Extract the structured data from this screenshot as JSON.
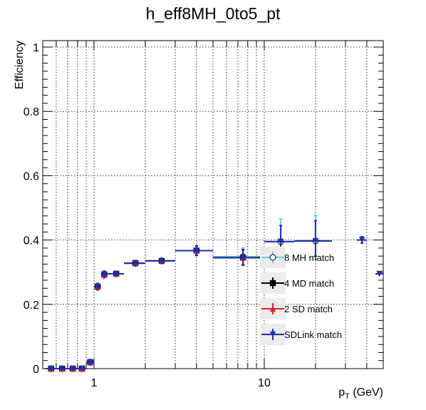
{
  "chart_data": {
    "type": "scatter",
    "title": "h_eff8MH_0to5_pt",
    "xlabel_main": "p",
    "xlabel_sub": "T",
    "xlabel_unit": " (GeV)",
    "ylabel": "Efficiency",
    "x_scale": "log",
    "xlim": [
      0.5,
      50
    ],
    "ylim": [
      0,
      1.02
    ],
    "x_tick_labels": [
      {
        "v": 1,
        "label": "1"
      },
      {
        "v": 10,
        "label": "10"
      }
    ],
    "y_tick_labels": [
      {
        "v": 0,
        "label": "0"
      },
      {
        "v": 0.2,
        "label": "0.2"
      },
      {
        "v": 0.4,
        "label": "0.4"
      },
      {
        "v": 0.6,
        "label": "0.6"
      },
      {
        "v": 0.8,
        "label": "0.8"
      },
      {
        "v": 1,
        "label": "1"
      }
    ],
    "grid": true,
    "legend_position": "bottom-right",
    "series": [
      {
        "name": "8 MH match",
        "color": "#55d4e6",
        "marker": "open-circle",
        "points": [
          {
            "x": 0.56,
            "xlo": 0.52,
            "xhi": 0.6,
            "y": 0.0,
            "ylo": 0.0,
            "yhi": 0.0
          },
          {
            "x": 0.65,
            "xlo": 0.6,
            "xhi": 0.7,
            "y": 0.0,
            "ylo": 0.0,
            "yhi": 0.0
          },
          {
            "x": 0.75,
            "xlo": 0.7,
            "xhi": 0.8,
            "y": 0.0,
            "ylo": 0.0,
            "yhi": 0.0
          },
          {
            "x": 0.85,
            "xlo": 0.8,
            "xhi": 0.9,
            "y": 0.0,
            "ylo": 0.0,
            "yhi": 0.0
          },
          {
            "x": 0.95,
            "xlo": 0.9,
            "xhi": 1.0,
            "y": 0.02,
            "ylo": 0.012,
            "yhi": 0.028
          },
          {
            "x": 1.05,
            "xlo": 1.0,
            "xhi": 1.1,
            "y": 0.255,
            "ylo": 0.245,
            "yhi": 0.265
          },
          {
            "x": 1.15,
            "xlo": 1.1,
            "xhi": 1.2,
            "y": 0.293,
            "ylo": 0.283,
            "yhi": 0.303
          },
          {
            "x": 1.35,
            "xlo": 1.2,
            "xhi": 1.5,
            "y": 0.295,
            "ylo": 0.288,
            "yhi": 0.302
          },
          {
            "x": 1.75,
            "xlo": 1.5,
            "xhi": 2.0,
            "y": 0.328,
            "ylo": 0.32,
            "yhi": 0.336
          },
          {
            "x": 2.5,
            "xlo": 2.0,
            "xhi": 3.0,
            "y": 0.335,
            "ylo": 0.327,
            "yhi": 0.343
          },
          {
            "x": 4.0,
            "xlo": 3.0,
            "xhi": 5.0,
            "y": 0.367,
            "ylo": 0.352,
            "yhi": 0.382
          },
          {
            "x": 7.5,
            "xlo": 5.0,
            "xhi": 10.0,
            "y": 0.348,
            "ylo": 0.325,
            "yhi": 0.375
          },
          {
            "x": 12.5,
            "xlo": 10.0,
            "xhi": 15.0,
            "y": 0.395,
            "ylo": 0.34,
            "yhi": 0.465
          },
          {
            "x": 20.0,
            "xlo": 15.0,
            "xhi": 25.0,
            "y": 0.397,
            "ylo": 0.34,
            "yhi": 0.475
          }
        ]
      },
      {
        "name": "4 MD match",
        "color": "#000000",
        "marker": "filled-square",
        "points": [
          {
            "x": 0.56,
            "xlo": 0.52,
            "xhi": 0.6,
            "y": 0.0,
            "ylo": 0.0,
            "yhi": 0.0
          },
          {
            "x": 0.65,
            "xlo": 0.6,
            "xhi": 0.7,
            "y": 0.0,
            "ylo": 0.0,
            "yhi": 0.0
          },
          {
            "x": 0.75,
            "xlo": 0.7,
            "xhi": 0.8,
            "y": 0.0,
            "ylo": 0.0,
            "yhi": 0.0
          },
          {
            "x": 0.85,
            "xlo": 0.8,
            "xhi": 0.9,
            "y": 0.0,
            "ylo": 0.0,
            "yhi": 0.0
          },
          {
            "x": 0.95,
            "xlo": 0.9,
            "xhi": 1.0,
            "y": 0.02,
            "ylo": 0.012,
            "yhi": 0.028
          },
          {
            "x": 1.05,
            "xlo": 1.0,
            "xhi": 1.1,
            "y": 0.255,
            "ylo": 0.245,
            "yhi": 0.265
          },
          {
            "x": 1.15,
            "xlo": 1.1,
            "xhi": 1.2,
            "y": 0.293,
            "ylo": 0.283,
            "yhi": 0.303
          },
          {
            "x": 1.35,
            "xlo": 1.2,
            "xhi": 1.5,
            "y": 0.295,
            "ylo": 0.288,
            "yhi": 0.302
          },
          {
            "x": 1.75,
            "xlo": 1.5,
            "xhi": 2.0,
            "y": 0.328,
            "ylo": 0.32,
            "yhi": 0.336
          },
          {
            "x": 2.5,
            "xlo": 2.0,
            "xhi": 3.0,
            "y": 0.335,
            "ylo": 0.327,
            "yhi": 0.343
          },
          {
            "x": 4.0,
            "xlo": 3.0,
            "xhi": 5.0,
            "y": 0.367,
            "ylo": 0.352,
            "yhi": 0.382
          },
          {
            "x": 7.5,
            "xlo": 5.0,
            "xhi": 10.0,
            "y": 0.345,
            "ylo": 0.322,
            "yhi": 0.37
          }
        ]
      },
      {
        "name": "2 SD match",
        "color": "#e02020",
        "marker": "filled-triangle-up",
        "points": [
          {
            "x": 0.56,
            "xlo": 0.52,
            "xhi": 0.6,
            "y": 0.0,
            "ylo": 0.0,
            "yhi": 0.0
          },
          {
            "x": 0.65,
            "xlo": 0.6,
            "xhi": 0.7,
            "y": 0.0,
            "ylo": 0.0,
            "yhi": 0.0
          },
          {
            "x": 0.75,
            "xlo": 0.7,
            "xhi": 0.8,
            "y": 0.0,
            "ylo": 0.0,
            "yhi": 0.0
          },
          {
            "x": 0.85,
            "xlo": 0.8,
            "xhi": 0.9,
            "y": 0.0,
            "ylo": 0.0,
            "yhi": 0.0
          },
          {
            "x": 0.95,
            "xlo": 0.9,
            "xhi": 1.0,
            "y": 0.02,
            "ylo": 0.012,
            "yhi": 0.028
          },
          {
            "x": 1.05,
            "xlo": 1.0,
            "xhi": 1.1,
            "y": 0.255,
            "ylo": 0.245,
            "yhi": 0.265
          },
          {
            "x": 1.15,
            "xlo": 1.1,
            "xhi": 1.2,
            "y": 0.293,
            "ylo": 0.283,
            "yhi": 0.303
          },
          {
            "x": 1.35,
            "xlo": 1.2,
            "xhi": 1.5,
            "y": 0.295,
            "ylo": 0.288,
            "yhi": 0.302
          },
          {
            "x": 1.75,
            "xlo": 1.5,
            "xhi": 2.0,
            "y": 0.328,
            "ylo": 0.32,
            "yhi": 0.336
          },
          {
            "x": 2.5,
            "xlo": 2.0,
            "xhi": 3.0,
            "y": 0.335,
            "ylo": 0.327,
            "yhi": 0.343
          },
          {
            "x": 4.0,
            "xlo": 3.0,
            "xhi": 5.0,
            "y": 0.367,
            "ylo": 0.352,
            "yhi": 0.382
          },
          {
            "x": 7.5,
            "xlo": 5.0,
            "xhi": 10.0,
            "y": 0.345,
            "ylo": 0.322,
            "yhi": 0.37
          }
        ]
      },
      {
        "name": "SDLink match",
        "color": "#1a2fb0",
        "marker": "filled-triangle-down",
        "points": [
          {
            "x": 0.56,
            "xlo": 0.52,
            "xhi": 0.6,
            "y": 0.0,
            "ylo": 0.0,
            "yhi": 0.0
          },
          {
            "x": 0.65,
            "xlo": 0.6,
            "xhi": 0.7,
            "y": 0.0,
            "ylo": 0.0,
            "yhi": 0.0
          },
          {
            "x": 0.75,
            "xlo": 0.7,
            "xhi": 0.8,
            "y": 0.0,
            "ylo": 0.0,
            "yhi": 0.0
          },
          {
            "x": 0.85,
            "xlo": 0.8,
            "xhi": 0.9,
            "y": 0.0,
            "ylo": 0.0,
            "yhi": 0.0
          },
          {
            "x": 0.95,
            "xlo": 0.9,
            "xhi": 1.0,
            "y": 0.02,
            "ylo": 0.012,
            "yhi": 0.028
          },
          {
            "x": 1.05,
            "xlo": 1.0,
            "xhi": 1.1,
            "y": 0.255,
            "ylo": 0.245,
            "yhi": 0.265
          },
          {
            "x": 1.15,
            "xlo": 1.1,
            "xhi": 1.2,
            "y": 0.293,
            "ylo": 0.283,
            "yhi": 0.303
          },
          {
            "x": 1.35,
            "xlo": 1.2,
            "xhi": 1.5,
            "y": 0.295,
            "ylo": 0.288,
            "yhi": 0.302
          },
          {
            "x": 1.75,
            "xlo": 1.5,
            "xhi": 2.0,
            "y": 0.328,
            "ylo": 0.32,
            "yhi": 0.336
          },
          {
            "x": 2.5,
            "xlo": 2.0,
            "xhi": 3.0,
            "y": 0.335,
            "ylo": 0.327,
            "yhi": 0.343
          },
          {
            "x": 4.0,
            "xlo": 3.0,
            "xhi": 5.0,
            "y": 0.367,
            "ylo": 0.352,
            "yhi": 0.382
          },
          {
            "x": 7.5,
            "xlo": 5.0,
            "xhi": 10.0,
            "y": 0.345,
            "ylo": 0.322,
            "yhi": 0.37
          },
          {
            "x": 12.5,
            "xlo": 10.0,
            "xhi": 15.0,
            "y": 0.395,
            "ylo": 0.35,
            "yhi": 0.445
          },
          {
            "x": 20.0,
            "xlo": 15.0,
            "xhi": 25.0,
            "y": 0.397,
            "ylo": 0.35,
            "yhi": 0.46
          },
          {
            "x": 37.5,
            "xlo": 35.0,
            "xhi": 40.0,
            "y": 0.4,
            "ylo": 0.39,
            "yhi": 0.41
          },
          {
            "x": 47.5,
            "xlo": 45.0,
            "xhi": 50.0,
            "y": 0.295,
            "ylo": 0.295,
            "yhi": 0.295
          }
        ]
      }
    ]
  }
}
